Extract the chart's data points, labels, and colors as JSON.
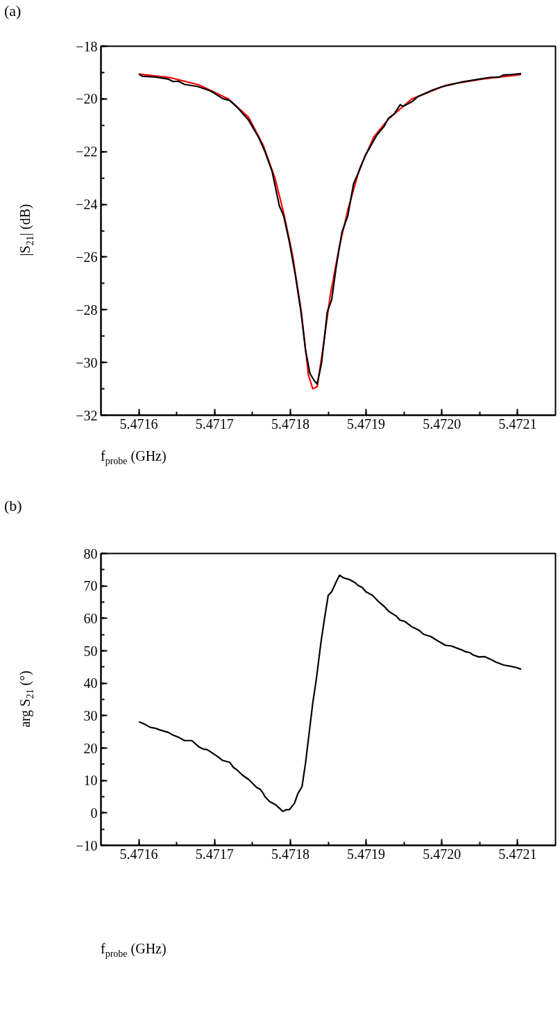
{
  "chart_data": [
    {
      "type": "line",
      "annotations": [
        "(a)"
      ],
      "xlabel": "f$_{probe}$ (GHz)",
      "ylabel": "|S$_{21}$| (dB)",
      "grid": false,
      "marker": "none",
      "line_style": "solid",
      "xlim": [
        5.47155,
        5.47215
      ],
      "xticks": [
        5.4716,
        5.4717,
        5.4718,
        5.4719,
        {
          "value": 5.472,
          "label": "5.4720"
        },
        5.4721
      ],
      "ylim": [
        -32,
        -18
      ],
      "yticks": [
        -32,
        -30,
        -28,
        -26,
        -24,
        -22,
        -20,
        -18
      ],
      "series": [
        {
          "color": "#ff0000",
          "x": [
            5.4716,
            5.4716412,
            5.4716796,
            5.4717181,
            5.471745,
            5.4717642,
            5.4717796,
            5.4717912,
            5.4718027,
            5.4718142,
            5.4718238,
            5.4718296,
            5.4718354,
            5.4718431,
            5.4718527,
            5.4718642,
            5.4718758,
            5.4718912,
            5.4719104,
            5.4719296,
            5.4719604,
            5.4720065,
            5.4720527,
            5.4721046
          ],
          "values": [
            -19.06,
            -19.19,
            -19.47,
            -20.0,
            -20.7,
            -21.76,
            -22.99,
            -24.33,
            -25.89,
            -28.01,
            -30.47,
            -31.0,
            -30.92,
            -29.46,
            -27.45,
            -25.67,
            -24.22,
            -22.66,
            -21.43,
            -20.76,
            -20.0,
            -19.47,
            -19.25,
            -19.08
          ]
        },
        {
          "color": "#000000",
          "x": [
            5.4716,
            5.4716046,
            5.4716219,
            5.4716392,
            5.471645,
            5.4716527,
            5.4716604,
            5.4716777,
            5.471695,
            5.4717104,
            5.47172,
            5.4717296,
            5.471745,
            5.4717585,
            5.4717662,
            5.4717758,
            5.4717854,
            5.4717912,
            5.4717988,
            5.4718065,
            5.4718142,
            5.47182,
            5.4718258,
            5.4718315,
            5.4718354,
            5.4718412,
            5.4718488,
            5.4718546,
            5.4718604,
            5.4718681,
            5.4718758,
            5.4718835,
            5.4718912,
            5.4718988,
            5.4719065,
            5.4719142,
            5.4719238,
            5.4719296,
            5.4719373,
            5.471945,
            5.4719488,
            5.4719604,
            5.4719681,
            5.4719873,
            5.4719988,
            5.4720142,
            5.4720258,
            5.472045,
            5.4720642,
            5.4720758,
            5.4720815,
            5.4720912,
            5.4721046
          ],
          "values": [
            -19.05,
            -19.14,
            -19.17,
            -19.25,
            -19.34,
            -19.33,
            -19.45,
            -19.53,
            -19.7,
            -19.98,
            -20.06,
            -20.31,
            -20.81,
            -21.48,
            -21.98,
            -22.74,
            -24.05,
            -24.44,
            -25.44,
            -26.67,
            -28.12,
            -29.52,
            -30.41,
            -30.69,
            -30.82,
            -30.02,
            -28.07,
            -27.62,
            -26.39,
            -25.05,
            -24.44,
            -23.21,
            -22.71,
            -22.15,
            -21.76,
            -21.37,
            -21.04,
            -20.73,
            -20.56,
            -20.22,
            -20.28,
            -20.11,
            -19.92,
            -19.67,
            -19.55,
            -19.44,
            -19.36,
            -19.27,
            -19.18,
            -19.17,
            -19.09,
            -19.08,
            -19.04
          ]
        }
      ]
    },
    {
      "type": "line",
      "annotations": [
        "(b)"
      ],
      "xlabel": "f$_{probe}$ (GHz)",
      "ylabel": "arg S$_{21}$ (°)",
      "grid": false,
      "marker": "none",
      "line_style": "solid",
      "xlim": [
        5.47155,
        5.47215
      ],
      "xticks": [
        5.4716,
        5.4717,
        5.4718,
        5.4719,
        {
          "value": 5.472,
          "label": "5.4720"
        },
        5.4721
      ],
      "ylim": [
        -10,
        80
      ],
      "yticks": [
        -10,
        0,
        10,
        20,
        30,
        40,
        50,
        60,
        70,
        80
      ],
      "series": [
        {
          "color": "#000000",
          "x": [
            5.4716,
            5.4716065,
            5.471615,
            5.4716219,
            5.4716277,
            5.4716392,
            5.471645,
            5.4716527,
            5.4716604,
            5.47167,
            5.4716796,
            5.4716854,
            5.4716904,
            5.4717046,
            5.4717104,
            5.47172,
            5.471725,
            5.4717304,
            5.4717365,
            5.471745,
            5.4717558,
            5.4717604,
            5.4717642,
            5.4717665,
            5.4717727,
            5.47178,
            5.4717854,
            5.47179,
            5.4717946,
            5.4717988,
            5.4718054,
            5.47181,
            5.4718154,
            5.47182,
            5.4718296,
            5.4718342,
            5.4718404,
            5.471845,
            5.47185,
            5.4718546,
            5.4718604,
            5.471865,
            5.47187,
            5.4718777,
            5.4718854,
            5.4718892,
            5.471895,
            5.4718996,
            5.4719085,
            5.4719162,
            5.4719238,
            5.4719296,
            5.4719392,
            5.471945,
            5.4719508,
            5.4719604,
            5.47197,
            5.4719758,
            5.4719854,
            5.471995,
            5.4720046,
            5.4720123,
            5.4720258,
            5.4720315,
            5.4720373,
            5.4720412,
            5.4720488,
            5.4720565,
            5.4720642,
            5.4720712,
            5.4720815,
            5.4720912,
            5.4720988,
            5.4721046
          ],
          "values": [
            28.1,
            27.5,
            26.4,
            26.1,
            25.6,
            24.8,
            24.0,
            23.3,
            22.3,
            22.3,
            20.3,
            19.7,
            19.5,
            17.3,
            16.2,
            15.6,
            14.0,
            13.1,
            11.7,
            10.3,
            7.8,
            7.3,
            6.0,
            5.0,
            3.5,
            2.6,
            1.5,
            0.5,
            1.0,
            1.0,
            3.0,
            6.0,
            8.1,
            15.3,
            33.9,
            41.1,
            52.6,
            59.8,
            67.1,
            68.2,
            71.2,
            73.3,
            72.5,
            72.0,
            71.0,
            70.2,
            69.5,
            68.2,
            67.1,
            65.2,
            63.7,
            62.2,
            60.8,
            59.4,
            59.1,
            57.4,
            56.3,
            55.1,
            54.4,
            53.0,
            51.7,
            51.5,
            50.3,
            49.7,
            49.4,
            48.7,
            48.1,
            48.2,
            47.4,
            46.5,
            45.6,
            45.2,
            44.8,
            44.3
          ]
        }
      ]
    }
  ]
}
